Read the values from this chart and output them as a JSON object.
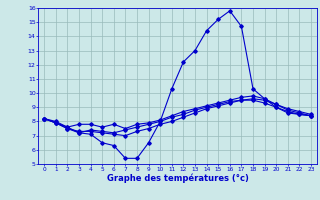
{
  "title": "Graphe des températures (°c)",
  "xlabel_hours": [
    0,
    1,
    2,
    3,
    4,
    5,
    6,
    7,
    8,
    9,
    10,
    11,
    12,
    13,
    14,
    15,
    16,
    17,
    18,
    19,
    20,
    21,
    22,
    23
  ],
  "ylim": [
    5,
    16
  ],
  "xlim": [
    -0.5,
    23.5
  ],
  "yticks": [
    5,
    6,
    7,
    8,
    9,
    10,
    11,
    12,
    13,
    14,
    15,
    16
  ],
  "bg_color": "#cce8e8",
  "line_color": "#0000cc",
  "grid_color": "#99bbbb",
  "curve1": {
    "x": [
      0,
      1,
      2,
      3,
      4,
      5,
      6,
      7,
      8,
      9,
      10,
      11,
      12,
      13,
      14,
      15,
      16,
      17,
      18,
      19,
      20,
      21,
      22,
      23
    ],
    "y": [
      8.2,
      8.0,
      7.6,
      7.2,
      7.1,
      6.5,
      6.3,
      5.4,
      5.4,
      6.5,
      8.0,
      10.3,
      12.2,
      13.0,
      14.4,
      15.2,
      15.8,
      14.7,
      10.3,
      9.6,
      9.0,
      8.6,
      8.5,
      8.4
    ]
  },
  "curve2": {
    "x": [
      0,
      1,
      2,
      3,
      4,
      5,
      6,
      7,
      8,
      9,
      10,
      11,
      12,
      13,
      14,
      15,
      16,
      17,
      18,
      19,
      20,
      21,
      22,
      23
    ],
    "y": [
      8.2,
      7.9,
      7.6,
      7.8,
      7.8,
      7.6,
      7.8,
      7.5,
      7.8,
      7.9,
      8.1,
      8.4,
      8.7,
      8.9,
      9.1,
      9.3,
      9.5,
      9.7,
      9.8,
      9.6,
      9.2,
      8.9,
      8.7,
      8.5
    ]
  },
  "curve3": {
    "x": [
      0,
      1,
      2,
      3,
      4,
      5,
      6,
      7,
      8,
      9,
      10,
      11,
      12,
      13,
      14,
      15,
      16,
      17,
      18,
      19,
      20,
      21,
      22,
      23
    ],
    "y": [
      8.2,
      7.9,
      7.5,
      7.3,
      7.3,
      7.2,
      7.1,
      7.0,
      7.3,
      7.5,
      7.8,
      8.0,
      8.3,
      8.6,
      8.9,
      9.1,
      9.3,
      9.5,
      9.6,
      9.5,
      9.2,
      8.8,
      8.6,
      8.4
    ]
  },
  "curve4": {
    "x": [
      0,
      1,
      2,
      3,
      4,
      5,
      6,
      7,
      8,
      9,
      10,
      11,
      12,
      13,
      14,
      15,
      16,
      17,
      18,
      19,
      20,
      21,
      22,
      23
    ],
    "y": [
      8.2,
      7.9,
      7.5,
      7.2,
      7.4,
      7.3,
      7.2,
      7.4,
      7.6,
      7.8,
      8.0,
      8.3,
      8.5,
      8.8,
      9.0,
      9.2,
      9.4,
      9.5,
      9.5,
      9.3,
      9.0,
      8.7,
      8.5,
      8.4
    ]
  },
  "figsize": [
    3.2,
    2.0
  ],
  "dpi": 100
}
